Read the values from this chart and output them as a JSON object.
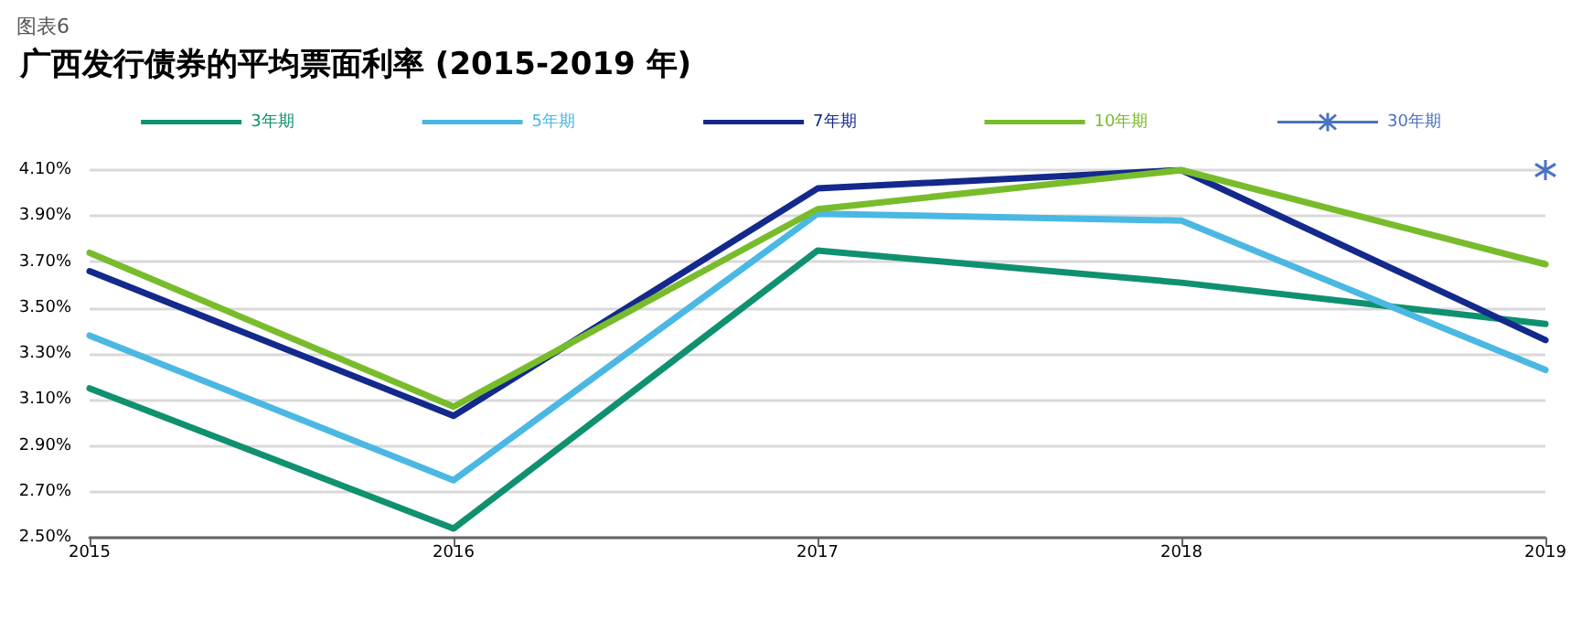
{
  "chart_data": {
    "type": "line",
    "title": "广西发行债券的平均票面利率 (2015-2019 年)",
    "annotations": [
      "图表6"
    ],
    "categories": [
      "2015",
      "2016",
      "2017",
      "2018",
      "2019"
    ],
    "series": [
      {
        "name": "3年期",
        "color": "#0f9170",
        "values": [
          3.15,
          2.54,
          3.75,
          3.61,
          3.43
        ]
      },
      {
        "name": "5年期",
        "color": "#4ab8e3",
        "values": [
          3.38,
          2.75,
          3.91,
          3.88,
          3.23
        ]
      },
      {
        "name": "7年期",
        "color": "#13298c",
        "values": [
          3.66,
          3.03,
          4.02,
          4.1,
          3.36
        ]
      },
      {
        "name": "10年期",
        "color": "#78bc2c",
        "values": [
          3.74,
          3.07,
          3.93,
          4.1,
          3.69
        ]
      },
      {
        "name": "30年期",
        "color": "#4a72c4",
        "marker": "cross",
        "values": [
          null,
          null,
          null,
          null,
          4.1
        ]
      }
    ],
    "marker": "none",
    "line_style": "solid",
    "grid": "y",
    "legend": "top",
    "ylim": [
      2.5,
      4.1
    ],
    "yticks": [
      {
        "value": 2.5,
        "label": "2.50%"
      },
      {
        "value": 2.7,
        "label": "2.70%"
      },
      {
        "value": 2.9,
        "label": "2.90%"
      },
      {
        "value": 3.1,
        "label": "3.10%"
      },
      {
        "value": 3.3,
        "label": "3.30%"
      },
      {
        "value": 3.5,
        "label": "3.50%"
      },
      {
        "value": 3.7,
        "label": "3.70%"
      },
      {
        "value": 3.9,
        "label": "3.90%"
      },
      {
        "value": 4.1,
        "label": "4.10%"
      }
    ]
  }
}
